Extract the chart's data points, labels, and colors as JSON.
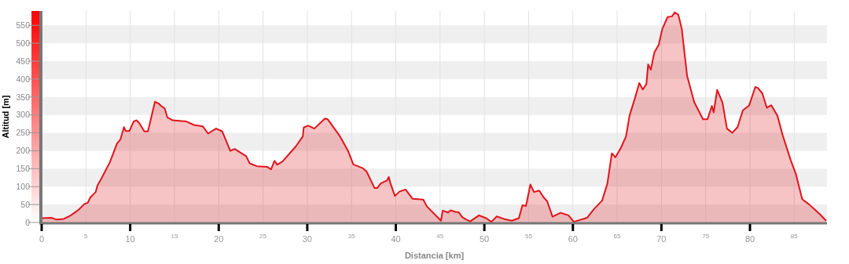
{
  "chart_data": {
    "type": "area",
    "xlabel": "Distancia [km]",
    "ylabel": "Altitud [m]",
    "xlim": [
      0,
      88.7
    ],
    "ylim": [
      0,
      590
    ],
    "xticks": [
      0,
      5,
      10,
      15,
      20,
      25,
      30,
      35,
      40,
      45,
      50,
      55,
      60,
      65,
      70,
      75,
      80,
      85
    ],
    "yticks": [
      0,
      50,
      100,
      150,
      200,
      250,
      300,
      350,
      400,
      450,
      500,
      550
    ],
    "grid": true,
    "series": [
      {
        "color": "#e0141b",
        "x": [
          0,
          1.1,
          1.7,
          2.5,
          3.3,
          4.2,
          4.8,
          5.2,
          5.5,
          6.1,
          6.3,
          6.8,
          7.7,
          8.5,
          8.9,
          9.3,
          9.5,
          9.9,
          10.4,
          10.7,
          11.0,
          11.6,
          12.0,
          12.8,
          13.2,
          13.5,
          13.9,
          14.2,
          14.8,
          16.3,
          17.2,
          18.2,
          18.8,
          19.7,
          20.4,
          21.3,
          21.8,
          23.1,
          23.5,
          24.3,
          25.5,
          25.9,
          26.3,
          26.6,
          27.2,
          28.7,
          29.5,
          29.6,
          30.1,
          30.8,
          32.0,
          32.3,
          33.7,
          34.6,
          35.2,
          36.3,
          36.7,
          37.6,
          37.9,
          38.3,
          39.0,
          39.2,
          39.4,
          39.9,
          40.4,
          41.1,
          41.9,
          43.1,
          43.5,
          45.1,
          45.3,
          45.9,
          46.2,
          46.8,
          47.1,
          47.5,
          47.9,
          48.4,
          49.4,
          50.2,
          50.8,
          51.4,
          52.2,
          53.1,
          53.9,
          54.3,
          54.7,
          55.2,
          55.6,
          56.2,
          56.7,
          57.1,
          57.7,
          58.6,
          59.5,
          60.1,
          61.6,
          62.4,
          63.3,
          63.9,
          64.4,
          64.8,
          65.4,
          66.0,
          66.4,
          67.0,
          67.5,
          67.9,
          68.3,
          68.5,
          68.8,
          69.2,
          69.7,
          70.1,
          70.7,
          71.2,
          71.5,
          71.9,
          72.3,
          72.9,
          73.7,
          74.7,
          75.2,
          75.7,
          75.9,
          76.3,
          76.9,
          77.4,
          78.0,
          78.6,
          79.2,
          79.9,
          80.6,
          80.9,
          81.4,
          81.9,
          82.4,
          83.1,
          83.7,
          84.6,
          85.2,
          85.9,
          86.7,
          87.9,
          88.6
        ],
        "values": [
          12,
          13,
          8,
          10,
          20,
          36,
          51,
          55,
          70,
          85,
          103,
          125,
          168,
          220,
          232,
          266,
          255,
          255,
          282,
          285,
          278,
          254,
          254,
          337,
          332,
          325,
          318,
          293,
          285,
          282,
          272,
          268,
          248,
          262,
          254,
          200,
          205,
          185,
          165,
          157,
          155,
          148,
          172,
          161,
          170,
          212,
          240,
          265,
          270,
          262,
          290,
          288,
          240,
          200,
          162,
          151,
          142,
          96,
          96,
          109,
          117,
          127,
          109,
          74,
          86,
          92,
          66,
          64,
          45,
          5,
          33,
          28,
          34,
          29,
          29,
          15,
          9,
          3,
          20,
          12,
          2,
          17,
          10,
          5,
          12,
          48,
          46,
          106,
          85,
          89,
          70,
          59,
          16,
          27,
          20,
          2,
          13,
          38,
          61,
          109,
          193,
          182,
          207,
          240,
          298,
          346,
          389,
          371,
          386,
          441,
          426,
          474,
          496,
          540,
          573,
          575,
          586,
          580,
          540,
          409,
          336,
          288,
          288,
          325,
          307,
          370,
          334,
          262,
          250,
          266,
          313,
          326,
          378,
          375,
          360,
          320,
          327,
          298,
          243,
          174,
          134,
          65,
          50,
          23,
          5
        ]
      }
    ]
  }
}
